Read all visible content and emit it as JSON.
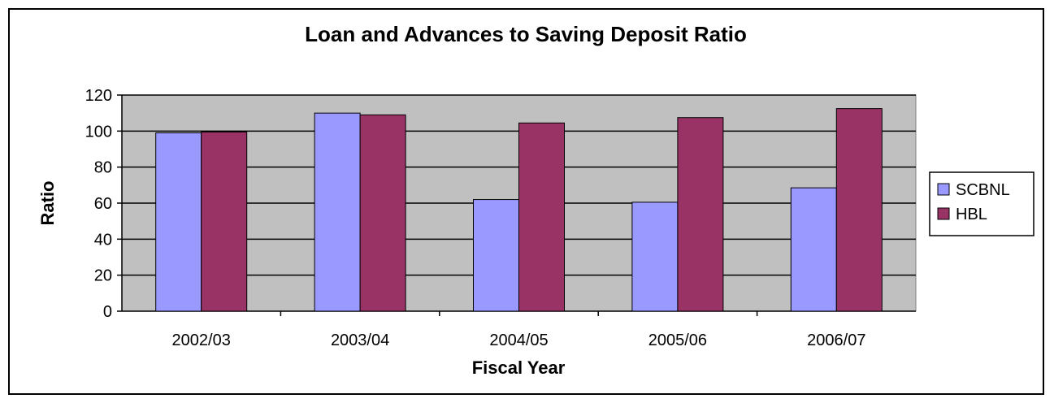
{
  "chart_data": {
    "type": "bar",
    "title": "Loan and Advances to Saving Deposit Ratio",
    "xlabel": "Fiscal Year",
    "ylabel": "Ratio",
    "categories": [
      "2002/03",
      "2003/04",
      "2004/05",
      "2005/06",
      "2006/07"
    ],
    "series": [
      {
        "name": "SCBNL",
        "values": [
          99,
          110,
          62,
          60.5,
          68.5
        ],
        "color": "#9999FF"
      },
      {
        "name": "HBL",
        "values": [
          99.5,
          109,
          104.5,
          107.5,
          112.5
        ],
        "color": "#993366"
      }
    ],
    "ylim": [
      0,
      120
    ],
    "yticks": [
      "0",
      "20",
      "40",
      "60",
      "80",
      "100",
      "120"
    ],
    "grid": true,
    "legend_position": "right",
    "plot_background": "#C0C0C0"
  }
}
